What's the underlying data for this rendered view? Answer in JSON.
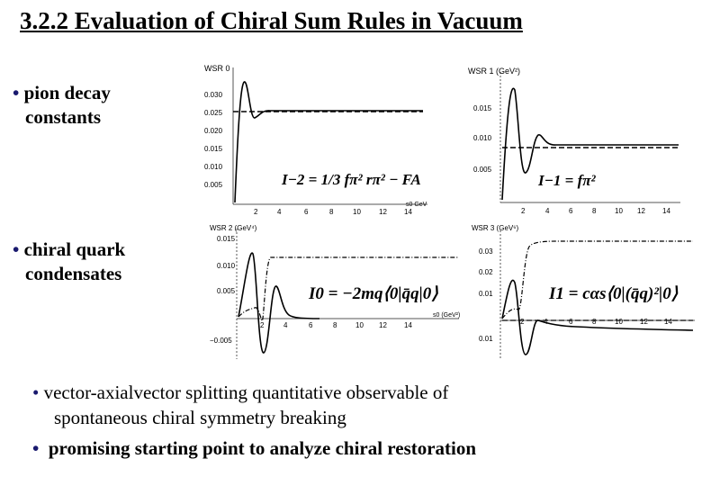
{
  "slide": {
    "title": "3.2.2 Evaluation of Chiral Sum Rules in Vacuum",
    "bullets_left": [
      {
        "line1": "pion decay",
        "line2": "constants"
      },
      {
        "line1": "chiral quark",
        "line2": "condensates"
      }
    ],
    "bottom_bullets": [
      {
        "line1": "vector-axialvector splitting quantitative observable of",
        "line2": "spontaneous chiral symmetry breaking"
      },
      {
        "line1": "promising starting point to analyze chiral restoration"
      }
    ],
    "bullet_glyph": "•"
  },
  "panels": {
    "wsr0": {
      "title": "WSR 0",
      "xunit": "s0 GeV",
      "formula": "I−2 = 1/3 fπ² rπ² − FA",
      "yticks": [
        "0.030",
        "0.025",
        "0.020",
        "0.015",
        "0.010",
        "0.005"
      ],
      "xticks": [
        "2",
        "4",
        "6",
        "8",
        "10",
        "12",
        "14"
      ]
    },
    "wsr1": {
      "title": "WSR 1 (GeV²)",
      "formula": "I−1 = fπ²",
      "yticks": [
        "0.015",
        "0.010",
        "0.005"
      ],
      "xticks": [
        "2",
        "4",
        "6",
        "8",
        "10",
        "12",
        "14"
      ]
    },
    "wsr2": {
      "title": "WSR 2 (GeV⁴)",
      "xunit": "s0 (GeV²)",
      "formula": "I0 = −2mq⟨0|q̄q|0⟩",
      "yticks": [
        "0.015",
        "0.010",
        "0.005",
        "−0.005"
      ],
      "xticks": [
        "2",
        "4",
        "6",
        "8",
        "10",
        "12",
        "14"
      ]
    },
    "wsr3": {
      "title": "WSR 3 (GeV⁶)",
      "formula": "I1 = cαs⟨0|(q̄q)²|0⟩",
      "yticks": [
        "0.03",
        "0.02",
        "0.01",
        "0.01"
      ],
      "xticks": [
        "2",
        "4",
        "6",
        "8",
        "10",
        "12",
        "14"
      ]
    }
  },
  "colors": {
    "bullet": "#1a1a6e",
    "curve": "#000000",
    "axis": "#555555"
  }
}
